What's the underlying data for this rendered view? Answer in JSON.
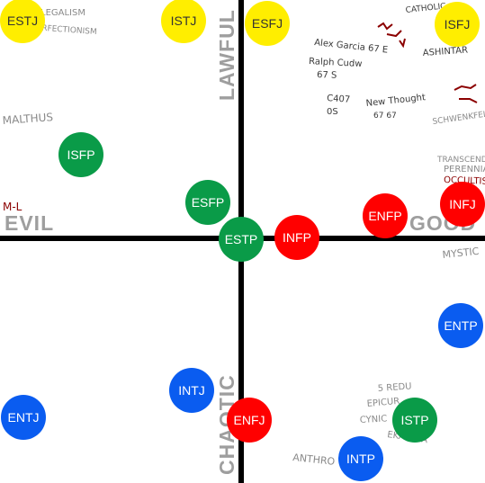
{
  "axes": {
    "labels": {
      "top": "LAWFUL",
      "bottom": "CHAOTIC",
      "left": "EVIL",
      "right": "GOOD"
    },
    "axis_color": "#000000",
    "label_color": "#9e9e9e"
  },
  "palette": {
    "yellow": "#ffee00",
    "green": "#0a9b48",
    "red": "#ff0000",
    "blue": "#0a5cf0",
    "dark_text": "#333333",
    "light_text": "#ffffff",
    "scribble": "#8a8a8a",
    "scribble_dark": "#3a3a3a",
    "scribble_red": "#8b0000"
  },
  "types": [
    {
      "id": "ESTJ",
      "label": "ESTJ",
      "color": "yellow"
    },
    {
      "id": "ISTJ",
      "label": "ISTJ",
      "color": "yellow"
    },
    {
      "id": "ESFJ",
      "label": "ESFJ",
      "color": "yellow"
    },
    {
      "id": "ISFJ",
      "label": "ISFJ",
      "color": "yellow"
    },
    {
      "id": "ISFP",
      "label": "ISFP",
      "color": "green"
    },
    {
      "id": "ESFP",
      "label": "ESFP",
      "color": "green"
    },
    {
      "id": "ESTP",
      "label": "ESTP",
      "color": "green"
    },
    {
      "id": "ISTP",
      "label": "ISTP",
      "color": "green"
    },
    {
      "id": "INFP",
      "label": "INFP",
      "color": "red"
    },
    {
      "id": "ENFP",
      "label": "ENFP",
      "color": "red"
    },
    {
      "id": "INFJ",
      "label": "INFJ",
      "color": "red"
    },
    {
      "id": "ENFJ",
      "label": "ENFJ",
      "color": "red"
    },
    {
      "id": "ENTP",
      "label": "ENTP",
      "color": "blue"
    },
    {
      "id": "INTJ",
      "label": "INTJ",
      "color": "blue"
    },
    {
      "id": "ENTJ",
      "label": "ENTJ",
      "color": "blue"
    },
    {
      "id": "INTP",
      "label": "INTP",
      "color": "blue"
    }
  ],
  "annotations": [
    {
      "id": "legalism",
      "text": "LEGALISM",
      "tone": "scribble"
    },
    {
      "id": "perfectionism",
      "text": "PERFECTIONISM",
      "tone": "scribble"
    },
    {
      "id": "malthus",
      "text": "MALTHUS",
      "tone": "scribble"
    },
    {
      "id": "ml",
      "text": "M-L",
      "tone": "scribble_red"
    },
    {
      "id": "catholic",
      "text": "CATHOLIC",
      "tone": "scribble_dark"
    },
    {
      "id": "alex-garcia",
      "text": "Alex Garcia 67 E",
      "tone": "scribble_dark"
    },
    {
      "id": "ralph-cudw",
      "text": "Ralph Cudw",
      "tone": "scribble_dark"
    },
    {
      "id": "sixty-seven-s",
      "text": "67 S",
      "tone": "scribble_dark"
    },
    {
      "id": "c407",
      "text": "C407",
      "tone": "scribble_dark"
    },
    {
      "id": "zero-s",
      "text": "0S",
      "tone": "scribble_dark"
    },
    {
      "id": "new-thought",
      "text": "New Thought",
      "tone": "scribble_dark"
    },
    {
      "id": "sixty-seven-b",
      "text": "67 67",
      "tone": "scribble_dark"
    },
    {
      "id": "ashintar",
      "text": "ASHINTAR",
      "tone": "scribble_dark"
    },
    {
      "id": "schwenkfelder",
      "text": "SCHWENKFELDIAN",
      "tone": "scribble"
    },
    {
      "id": "transcendent",
      "text": "TRANSCENDENT",
      "tone": "scribble"
    },
    {
      "id": "perennial",
      "text": "PERENNIAL",
      "tone": "scribble"
    },
    {
      "id": "occultism",
      "text": "OCCULTISM",
      "tone": "scribble_red"
    },
    {
      "id": "mystic",
      "text": "MYSTIC",
      "tone": "scribble"
    },
    {
      "id": "five-redu",
      "text": "5 REDU",
      "tone": "scribble"
    },
    {
      "id": "epicur",
      "text": "EPICUR",
      "tone": "scribble"
    },
    {
      "id": "cynic",
      "text": "CYNIC",
      "tone": "scribble"
    },
    {
      "id": "ekayana",
      "text": "EKAYANA",
      "tone": "scribble"
    },
    {
      "id": "anthro",
      "text": "ANTHRO",
      "tone": "scribble"
    }
  ]
}
